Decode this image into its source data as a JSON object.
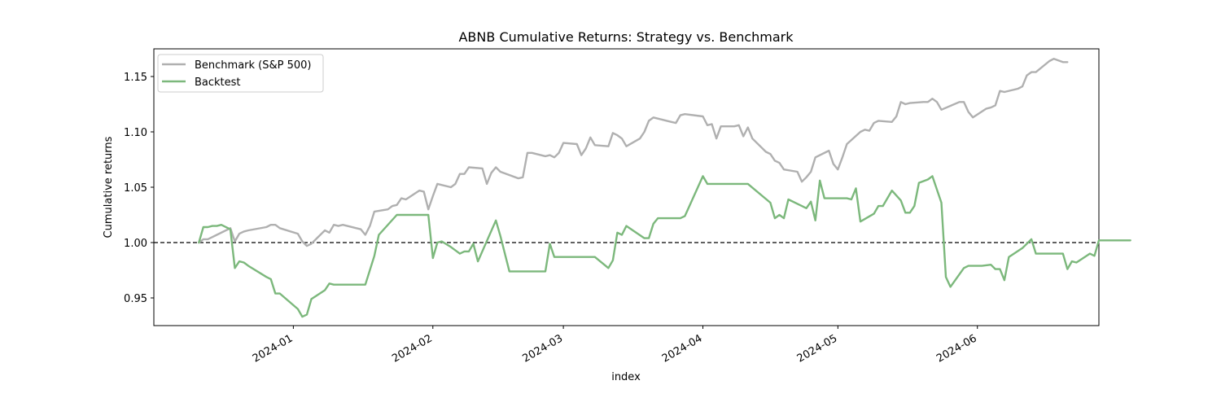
{
  "chart_data": {
    "type": "line",
    "title": "ABNB Cumulative Returns: Strategy vs. Benchmark",
    "xlabel": "index",
    "ylabel": "Cumulative returns",
    "x_range": [
      "2023-12-01",
      "2024-06-28"
    ],
    "ylim": [
      0.925,
      1.175
    ],
    "x_ticks": [
      "2024-01-01",
      "2024-02-01",
      "2024-03-01",
      "2024-04-01",
      "2024-05-01",
      "2024-06-01"
    ],
    "x_tick_labels": [
      "2024-01",
      "2024-02",
      "2024-03",
      "2024-04",
      "2024-05",
      "2024-06"
    ],
    "y_ticks": [
      0.95,
      1.0,
      1.05,
      1.1,
      1.15
    ],
    "y_tick_labels": [
      "0.95",
      "1.00",
      "1.05",
      "1.10",
      "1.15"
    ],
    "grid": false,
    "legend_position": "top-left",
    "reference_line": {
      "y": 1.0,
      "style": "dashed",
      "color": "#000000"
    },
    "series": [
      {
        "name": "Benchmark (S&P 500)",
        "color": "#b0b0b0",
        "points": [
          [
            "2023-12-11",
            1.0
          ],
          [
            "2023-12-12",
            1.003
          ],
          [
            "2023-12-13",
            1.003
          ],
          [
            "2023-12-14",
            1.005
          ],
          [
            "2023-12-15",
            1.007
          ],
          [
            "2023-12-18",
            1.013
          ],
          [
            "2023-12-19",
            1.001
          ],
          [
            "2023-12-20",
            1.008
          ],
          [
            "2023-12-21",
            1.01
          ],
          [
            "2023-12-22",
            1.011
          ],
          [
            "2023-12-26",
            1.014
          ],
          [
            "2023-12-27",
            1.016
          ],
          [
            "2023-12-28",
            1.016
          ],
          [
            "2023-12-29",
            1.013
          ],
          [
            "2024-01-02",
            1.008
          ],
          [
            "2024-01-03",
            1.001
          ],
          [
            "2024-01-04",
            0.997
          ],
          [
            "2024-01-05",
            0.999
          ],
          [
            "2024-01-08",
            1.011
          ],
          [
            "2024-01-09",
            1.009
          ],
          [
            "2024-01-10",
            1.016
          ],
          [
            "2024-01-11",
            1.015
          ],
          [
            "2024-01-12",
            1.016
          ],
          [
            "2024-01-16",
            1.012
          ],
          [
            "2024-01-17",
            1.007
          ],
          [
            "2024-01-18",
            1.015
          ],
          [
            "2024-01-19",
            1.028
          ],
          [
            "2024-01-22",
            1.03
          ],
          [
            "2024-01-23",
            1.033
          ],
          [
            "2024-01-24",
            1.034
          ],
          [
            "2024-01-25",
            1.04
          ],
          [
            "2024-01-26",
            1.039
          ],
          [
            "2024-01-29",
            1.047
          ],
          [
            "2024-01-30",
            1.046
          ],
          [
            "2024-01-31",
            1.03
          ],
          [
            "2024-02-01",
            1.042
          ],
          [
            "2024-02-02",
            1.053
          ],
          [
            "2024-02-05",
            1.05
          ],
          [
            "2024-02-06",
            1.053
          ],
          [
            "2024-02-07",
            1.062
          ],
          [
            "2024-02-08",
            1.062
          ],
          [
            "2024-02-09",
            1.068
          ],
          [
            "2024-02-12",
            1.067
          ],
          [
            "2024-02-13",
            1.053
          ],
          [
            "2024-02-14",
            1.063
          ],
          [
            "2024-02-15",
            1.068
          ],
          [
            "2024-02-16",
            1.064
          ],
          [
            "2024-02-20",
            1.058
          ],
          [
            "2024-02-21",
            1.059
          ],
          [
            "2024-02-22",
            1.081
          ],
          [
            "2024-02-23",
            1.081
          ],
          [
            "2024-02-26",
            1.078
          ],
          [
            "2024-02-27",
            1.079
          ],
          [
            "2024-02-28",
            1.077
          ],
          [
            "2024-02-29",
            1.081
          ],
          [
            "2024-03-01",
            1.09
          ],
          [
            "2024-03-04",
            1.089
          ],
          [
            "2024-03-05",
            1.079
          ],
          [
            "2024-03-06",
            1.085
          ],
          [
            "2024-03-07",
            1.095
          ],
          [
            "2024-03-08",
            1.088
          ],
          [
            "2024-03-11",
            1.087
          ],
          [
            "2024-03-12",
            1.099
          ],
          [
            "2024-03-13",
            1.097
          ],
          [
            "2024-03-14",
            1.094
          ],
          [
            "2024-03-15",
            1.087
          ],
          [
            "2024-03-18",
            1.094
          ],
          [
            "2024-03-19",
            1.1
          ],
          [
            "2024-03-20",
            1.11
          ],
          [
            "2024-03-21",
            1.113
          ],
          [
            "2024-03-22",
            1.112
          ],
          [
            "2024-03-25",
            1.109
          ],
          [
            "2024-03-26",
            1.108
          ],
          [
            "2024-03-27",
            1.115
          ],
          [
            "2024-03-28",
            1.116
          ],
          [
            "2024-04-01",
            1.114
          ],
          [
            "2024-04-02",
            1.106
          ],
          [
            "2024-04-03",
            1.107
          ],
          [
            "2024-04-04",
            1.094
          ],
          [
            "2024-04-05",
            1.105
          ],
          [
            "2024-04-08",
            1.105
          ],
          [
            "2024-04-09",
            1.106
          ],
          [
            "2024-04-10",
            1.096
          ],
          [
            "2024-04-11",
            1.104
          ],
          [
            "2024-04-12",
            1.094
          ],
          [
            "2024-04-15",
            1.082
          ],
          [
            "2024-04-16",
            1.08
          ],
          [
            "2024-04-17",
            1.074
          ],
          [
            "2024-04-18",
            1.072
          ],
          [
            "2024-04-19",
            1.066
          ],
          [
            "2024-04-22",
            1.064
          ],
          [
            "2024-04-23",
            1.055
          ],
          [
            "2024-04-24",
            1.059
          ],
          [
            "2024-04-25",
            1.064
          ],
          [
            "2024-04-26",
            1.077
          ],
          [
            "2024-04-29",
            1.083
          ],
          [
            "2024-04-30",
            1.071
          ],
          [
            "2024-05-01",
            1.066
          ],
          [
            "2024-05-02",
            1.077
          ],
          [
            "2024-05-03",
            1.089
          ],
          [
            "2024-05-06",
            1.1
          ],
          [
            "2024-05-07",
            1.102
          ],
          [
            "2024-05-08",
            1.101
          ],
          [
            "2024-05-09",
            1.108
          ],
          [
            "2024-05-10",
            1.11
          ],
          [
            "2024-05-13",
            1.109
          ],
          [
            "2024-05-14",
            1.114
          ],
          [
            "2024-05-15",
            1.127
          ],
          [
            "2024-05-16",
            1.125
          ],
          [
            "2024-05-17",
            1.126
          ],
          [
            "2024-05-20",
            1.127
          ],
          [
            "2024-05-21",
            1.127
          ],
          [
            "2024-05-22",
            1.13
          ],
          [
            "2024-05-23",
            1.127
          ],
          [
            "2024-05-24",
            1.12
          ],
          [
            "2024-05-28",
            1.127
          ],
          [
            "2024-05-29",
            1.127
          ],
          [
            "2024-05-30",
            1.118
          ],
          [
            "2024-05-31",
            1.113
          ],
          [
            "2024-06-03",
            1.121
          ],
          [
            "2024-06-04",
            1.122
          ],
          [
            "2024-06-05",
            1.124
          ],
          [
            "2024-06-06",
            1.137
          ],
          [
            "2024-06-07",
            1.136
          ],
          [
            "2024-06-10",
            1.139
          ],
          [
            "2024-06-11",
            1.141
          ],
          [
            "2024-06-12",
            1.151
          ],
          [
            "2024-06-13",
            1.154
          ],
          [
            "2024-06-14",
            1.154
          ],
          [
            "2024-06-17",
            1.164
          ],
          [
            "2024-06-18",
            1.166
          ],
          [
            "2024-06-20",
            1.163
          ],
          [
            "2024-06-21",
            1.163
          ]
        ]
      },
      {
        "name": "Backtest",
        "color": "#7cb87c",
        "points": [
          [
            "2023-12-11",
            1.0
          ],
          [
            "2023-12-12",
            1.014
          ],
          [
            "2023-12-13",
            1.014
          ],
          [
            "2023-12-14",
            1.015
          ],
          [
            "2023-12-15",
            1.015
          ],
          [
            "2023-12-16",
            1.016
          ],
          [
            "2023-12-18",
            1.012
          ],
          [
            "2023-12-19",
            0.977
          ],
          [
            "2023-12-20",
            0.983
          ],
          [
            "2023-12-21",
            0.982
          ],
          [
            "2023-12-22",
            0.979
          ],
          [
            "2023-12-26",
            0.969
          ],
          [
            "2023-12-27",
            0.967
          ],
          [
            "2023-12-28",
            0.954
          ],
          [
            "2023-12-29",
            0.954
          ],
          [
            "2024-01-02",
            0.94
          ],
          [
            "2024-01-03",
            0.933
          ],
          [
            "2024-01-04",
            0.935
          ],
          [
            "2024-01-05",
            0.949
          ],
          [
            "2024-01-08",
            0.957
          ],
          [
            "2024-01-09",
            0.963
          ],
          [
            "2024-01-10",
            0.962
          ],
          [
            "2024-01-11",
            0.962
          ],
          [
            "2024-01-17",
            0.962
          ],
          [
            "2024-01-19",
            0.988
          ],
          [
            "2024-01-20",
            1.007
          ],
          [
            "2024-01-24",
            1.025
          ],
          [
            "2024-01-31",
            1.025
          ],
          [
            "2024-02-01",
            0.986
          ],
          [
            "2024-02-02",
            1.0
          ],
          [
            "2024-02-03",
            1.001
          ],
          [
            "2024-02-05",
            0.996
          ],
          [
            "2024-02-07",
            0.99
          ],
          [
            "2024-02-08",
            0.992
          ],
          [
            "2024-02-09",
            0.992
          ],
          [
            "2024-02-10",
            0.999
          ],
          [
            "2024-02-11",
            0.983
          ],
          [
            "2024-02-15",
            1.02
          ],
          [
            "2024-02-16",
            1.006
          ],
          [
            "2024-02-18",
            0.974
          ],
          [
            "2024-02-26",
            0.974
          ],
          [
            "2024-02-27",
            0.999
          ],
          [
            "2024-02-28",
            0.987
          ],
          [
            "2024-03-01",
            0.987
          ],
          [
            "2024-03-08",
            0.987
          ],
          [
            "2024-03-11",
            0.977
          ],
          [
            "2024-03-12",
            0.984
          ],
          [
            "2024-03-13",
            1.009
          ],
          [
            "2024-03-14",
            1.007
          ],
          [
            "2024-03-15",
            1.015
          ],
          [
            "2024-03-19",
            1.004
          ],
          [
            "2024-03-20",
            1.004
          ],
          [
            "2024-03-21",
            1.017
          ],
          [
            "2024-03-22",
            1.022
          ],
          [
            "2024-03-27",
            1.022
          ],
          [
            "2024-03-28",
            1.024
          ],
          [
            "2024-04-01",
            1.06
          ],
          [
            "2024-04-02",
            1.053
          ],
          [
            "2024-04-08",
            1.053
          ],
          [
            "2024-04-11",
            1.053
          ],
          [
            "2024-04-16",
            1.036
          ],
          [
            "2024-04-17",
            1.022
          ],
          [
            "2024-04-18",
            1.025
          ],
          [
            "2024-04-19",
            1.022
          ],
          [
            "2024-04-20",
            1.039
          ],
          [
            "2024-04-23",
            1.033
          ],
          [
            "2024-04-24",
            1.031
          ],
          [
            "2024-04-25",
            1.037
          ],
          [
            "2024-04-26",
            1.02
          ],
          [
            "2024-04-27",
            1.056
          ],
          [
            "2024-04-28",
            1.04
          ],
          [
            "2024-05-03",
            1.04
          ],
          [
            "2024-05-04",
            1.039
          ],
          [
            "2024-05-05",
            1.049
          ],
          [
            "2024-05-06",
            1.019
          ],
          [
            "2024-05-09",
            1.026
          ],
          [
            "2024-05-10",
            1.033
          ],
          [
            "2024-05-11",
            1.033
          ],
          [
            "2024-05-13",
            1.047
          ],
          [
            "2024-05-15",
            1.038
          ],
          [
            "2024-05-16",
            1.027
          ],
          [
            "2024-05-17",
            1.027
          ],
          [
            "2024-05-18",
            1.033
          ],
          [
            "2024-05-19",
            1.054
          ],
          [
            "2024-05-21",
            1.057
          ],
          [
            "2024-05-22",
            1.06
          ],
          [
            "2024-05-24",
            1.036
          ],
          [
            "2024-05-25",
            0.969
          ],
          [
            "2024-05-26",
            0.96
          ],
          [
            "2024-05-29",
            0.977
          ],
          [
            "2024-05-30",
            0.979
          ],
          [
            "2024-06-02",
            0.979
          ],
          [
            "2024-06-04",
            0.98
          ],
          [
            "2024-06-05",
            0.976
          ],
          [
            "2024-06-06",
            0.976
          ],
          [
            "2024-06-07",
            0.966
          ],
          [
            "2024-06-08",
            0.987
          ],
          [
            "2024-06-11",
            0.995
          ],
          [
            "2024-06-13",
            1.003
          ],
          [
            "2024-06-14",
            0.99
          ],
          [
            "2024-06-20",
            0.99
          ],
          [
            "2024-06-21",
            0.976
          ],
          [
            "2024-06-22",
            0.983
          ],
          [
            "2024-06-23",
            0.982
          ],
          [
            "2024-06-26",
            0.99
          ],
          [
            "2024-06-27",
            0.988
          ],
          [
            "2024-06-28",
            1.002
          ],
          [
            "2024-07-05",
            1.002
          ]
        ]
      }
    ]
  }
}
